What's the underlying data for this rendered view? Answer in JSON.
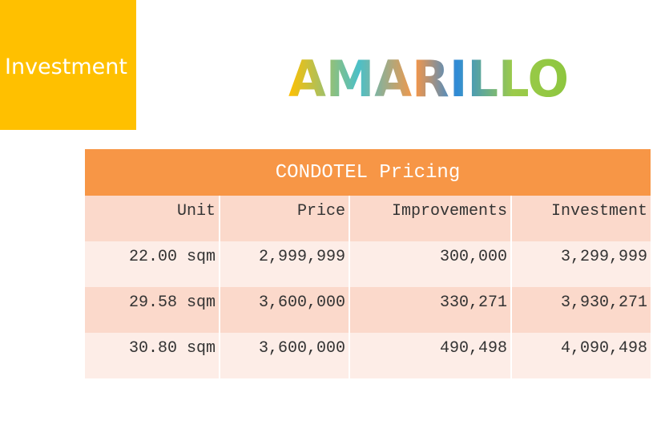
{
  "header": {
    "title": "Investment",
    "logo": "AMARILLO"
  },
  "table": {
    "title": "CONDOTEL Pricing",
    "columns": [
      "Unit",
      "Price",
      "Improvements",
      "Investment"
    ],
    "rows": [
      [
        "22.00 sqm",
        "2,999,999",
        "300,000",
        "3,299,999"
      ],
      [
        "29.58 sqm",
        "3,600,000",
        "330,271",
        "3,930,271"
      ],
      [
        "30.80 sqm",
        "3,600,000",
        "490,498",
        "4,090,498"
      ]
    ]
  }
}
